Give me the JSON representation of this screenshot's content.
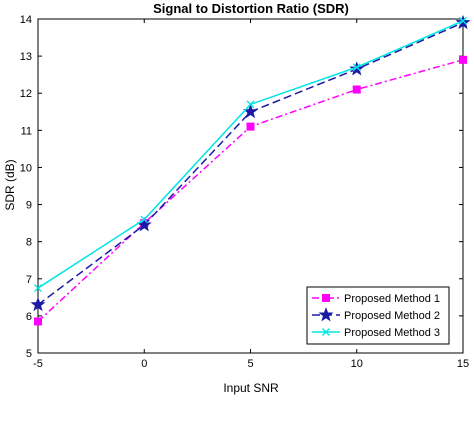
{
  "chart_data": {
    "type": "line",
    "title": "Signal to Distortion Ratio (SDR)",
    "xlabel": "Input SNR",
    "ylabel": "SDR (dB)",
    "x": [
      -5,
      0,
      5,
      10,
      15
    ],
    "xlim": [
      -5,
      15
    ],
    "ylim": [
      5,
      14
    ],
    "xticks": [
      "-5",
      "0",
      "5",
      "10",
      "15"
    ],
    "yticks": [
      "5",
      "6",
      "7",
      "8",
      "9",
      "10",
      "11",
      "12",
      "13",
      "14"
    ],
    "grid": false,
    "legend_position": "bottom-right",
    "series": [
      {
        "name": "Proposed Method 1",
        "values": [
          5.85,
          8.5,
          11.1,
          12.1,
          12.9
        ],
        "color": "#ff00ff",
        "dash": "dashdot",
        "marker": "square"
      },
      {
        "name": "Proposed Method 2",
        "values": [
          6.3,
          8.45,
          11.5,
          12.65,
          13.9
        ],
        "color": "#1a1aa6",
        "dash": "dashed",
        "marker": "star"
      },
      {
        "name": "Proposed Method 3",
        "values": [
          6.75,
          8.6,
          11.7,
          12.7,
          13.95
        ],
        "color": "#00e5e5",
        "dash": "solid",
        "marker": "x"
      }
    ]
  }
}
